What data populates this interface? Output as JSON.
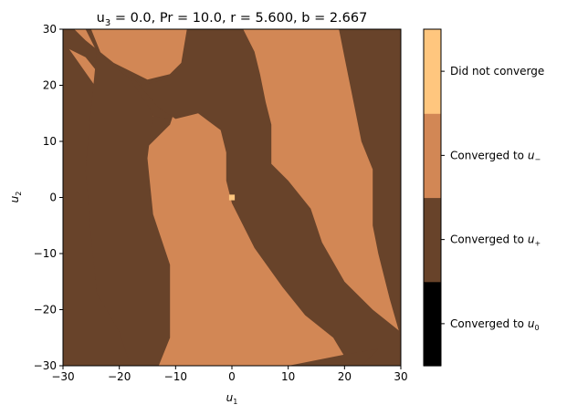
{
  "chart_data": {
    "type": "heatmap",
    "title": {
      "prefix": "u",
      "sub": "3",
      "rest": " = 0.0, Pr = 10.0, r = 5.600, b = 2.667"
    },
    "xlabel": {
      "base": "u",
      "sub": "1"
    },
    "ylabel": {
      "base": "u",
      "sub": "2"
    },
    "xlim": [
      -30,
      30
    ],
    "ylim": [
      30,
      -30
    ],
    "y_inverted": true,
    "xticks": [
      -30,
      -20,
      -10,
      0,
      10,
      20,
      30
    ],
    "yticks": [
      -30,
      -20,
      -10,
      0,
      10,
      20,
      30
    ],
    "tick_labels": {
      "x": [
        "−30",
        "−20",
        "−10",
        "0",
        "10",
        "20",
        "30"
      ],
      "y": [
        "−30",
        "−20",
        "−10",
        "0",
        "10",
        "20",
        "30"
      ]
    },
    "grid": false,
    "colorbar": {
      "position": "right",
      "levels": [
        {
          "value": 0,
          "color": "#000000",
          "label_base": "Converged to u",
          "label_sub": "0"
        },
        {
          "value": 1,
          "color": "#68432a",
          "label_base": "Converged to u",
          "label_sub": "+"
        },
        {
          "value": 2,
          "color": "#d28755",
          "label_base": "Converged to u",
          "label_sub": "−"
        },
        {
          "value": 3,
          "color": "#ffc67e",
          "label_base": "Did not converge",
          "label_sub": ""
        }
      ]
    },
    "regions": [
      {
        "value": 1,
        "polygon_u1_u2": [
          [
            -30,
            28
          ],
          [
            -23,
            18
          ],
          [
            -18,
            13
          ],
          [
            -10,
            16
          ],
          [
            -11,
            13
          ],
          [
            -18,
            6
          ],
          [
            -22,
            -2
          ],
          [
            -20,
            -12
          ],
          [
            -18,
            -21
          ],
          [
            -17,
            -27
          ],
          [
            -18,
            -30
          ],
          [
            -30,
            -30
          ]
        ],
        "cover": "base"
      },
      {
        "value": 1,
        "polygon_u1_u2": [
          [
            -30,
            30
          ],
          [
            -30,
            27
          ],
          [
            -26,
            25
          ],
          [
            -22,
            20
          ],
          [
            -17,
            15
          ],
          [
            -11,
            14
          ],
          [
            -8,
            18
          ],
          [
            -8,
            20
          ],
          [
            -11,
            22
          ],
          [
            -15,
            21
          ],
          [
            -21,
            24
          ],
          [
            -26,
            28
          ],
          [
            -28,
            30
          ]
        ]
      },
      {
        "value": 1,
        "polygon_u1_u2": [
          [
            -26,
            30
          ],
          [
            -24,
            26
          ],
          [
            -25,
            16
          ],
          [
            -26,
            5
          ],
          [
            -25,
            -7
          ],
          [
            -24,
            -17
          ],
          [
            -20,
            -24
          ],
          [
            -18,
            -30
          ],
          [
            -13,
            -30
          ],
          [
            -11,
            -25
          ],
          [
            -11,
            -12
          ],
          [
            -14,
            -3
          ],
          [
            -15,
            7
          ],
          [
            -14,
            15
          ],
          [
            -18,
            21
          ],
          [
            -23,
            25
          ],
          [
            -25,
            30
          ]
        ]
      },
      {
        "value": 1,
        "polygon_u1_u2": [
          [
            -19,
            23
          ],
          [
            -13,
            16
          ],
          [
            -10,
            14
          ],
          [
            -6,
            15
          ],
          [
            -2,
            12
          ],
          [
            -1,
            8
          ],
          [
            -1,
            3
          ],
          [
            0,
            -1
          ],
          [
            4,
            -9
          ],
          [
            9,
            -16
          ],
          [
            13,
            -21
          ],
          [
            18,
            -25
          ],
          [
            21,
            -30
          ],
          [
            30,
            -30
          ],
          [
            30,
            -24
          ],
          [
            25,
            -20
          ],
          [
            20,
            -15
          ],
          [
            16,
            -8
          ],
          [
            14,
            -2
          ],
          [
            10,
            3
          ],
          [
            7,
            6
          ],
          [
            7,
            13
          ],
          [
            6,
            17
          ],
          [
            5,
            22
          ],
          [
            4,
            26
          ],
          [
            2,
            30
          ],
          [
            -8,
            30
          ],
          [
            -9,
            24
          ],
          [
            -12,
            21
          ],
          [
            -16,
            20
          ]
        ]
      },
      {
        "value": 1,
        "polygon_u1_u2": [
          [
            10,
            -30
          ],
          [
            23,
            -30
          ],
          [
            26,
            -27
          ],
          [
            20,
            -28
          ]
        ]
      },
      {
        "value": 1,
        "polygon_u1_u2": [
          [
            30,
            -25
          ],
          [
            28,
            -18
          ],
          [
            26,
            -10
          ],
          [
            25,
            -5
          ],
          [
            25,
            5
          ],
          [
            23,
            10
          ],
          [
            22,
            15
          ],
          [
            21,
            20
          ],
          [
            20,
            25
          ],
          [
            19,
            30
          ],
          [
            30,
            30
          ]
        ]
      }
    ],
    "points": [
      {
        "u1": 0,
        "u2": 0,
        "value": 3
      }
    ]
  }
}
